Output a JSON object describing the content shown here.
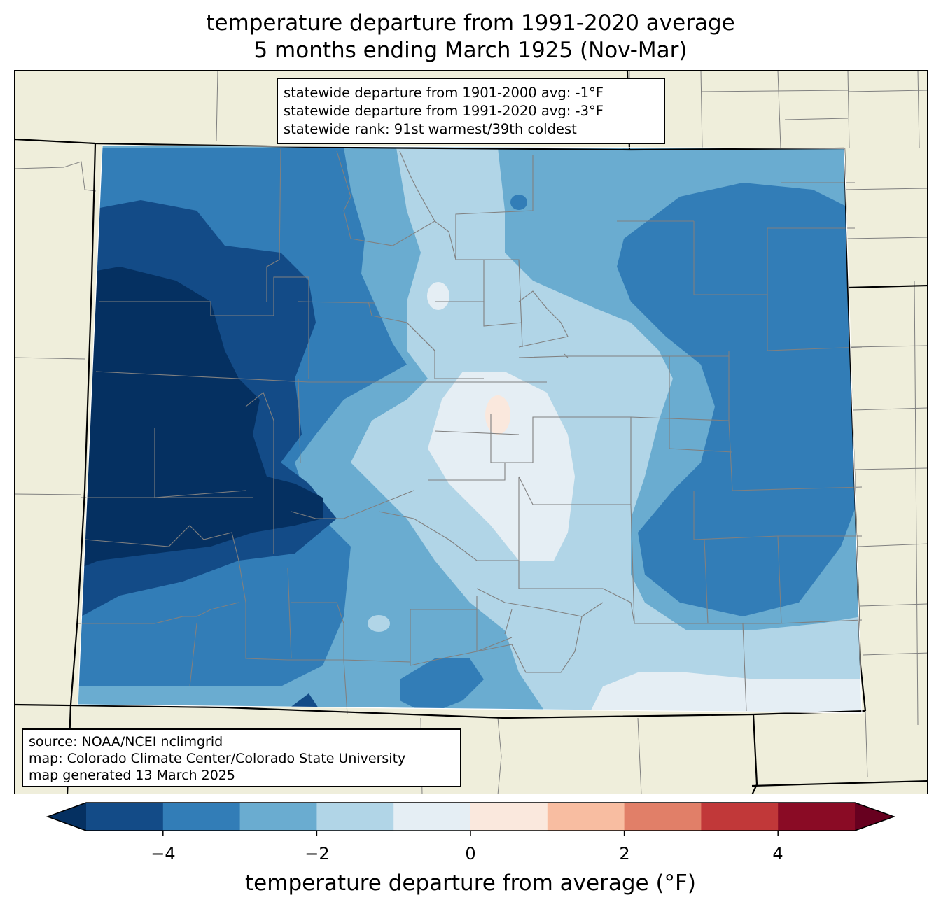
{
  "title": {
    "line1": "temperature departure from 1991-2020 average",
    "line2": "5 months ending March 1925 (Nov-Mar)"
  },
  "stats": {
    "line1": "statewide departure from 1901-2000 avg: -1°F",
    "line2": "statewide departure from 1991-2020 avg: -3°F",
    "line3": "statewide rank: 91st warmest/39th coldest"
  },
  "source": {
    "line1": "source: NOAA/NCEI nclimgrid",
    "line2": "map: Colorado Climate Center/Colorado State University",
    "line3": "map generated 13 March 2025"
  },
  "colorbar": {
    "label": "temperature departure from average (°F)",
    "ticks": [
      "−4",
      "−2",
      "0",
      "2",
      "4"
    ],
    "bins": [
      {
        "range": "< -5",
        "color": "#053061"
      },
      {
        "range": "-5 to -4",
        "color": "#134b87"
      },
      {
        "range": "-4 to -3",
        "color": "#327db7"
      },
      {
        "range": "-3 to -2",
        "color": "#6aacd0"
      },
      {
        "range": "-2 to -1",
        "color": "#b1d5e7"
      },
      {
        "range": "-1 to 0",
        "color": "#e5eef4"
      },
      {
        "range": "0 to 1",
        "color": "#fae8dd"
      },
      {
        "range": "1 to 2",
        "color": "#f8bda1"
      },
      {
        "range": "2 to 3",
        "color": "#e17f68"
      },
      {
        "range": "3 to 4",
        "color": "#c13839"
      },
      {
        "range": "4 to 5",
        "color": "#8a0b25"
      },
      {
        "range": "> 5",
        "color": "#67001f"
      }
    ]
  },
  "map_colors": {
    "land": "#efeedb",
    "county_lines": "#808080",
    "state_lines": "#000000"
  }
}
